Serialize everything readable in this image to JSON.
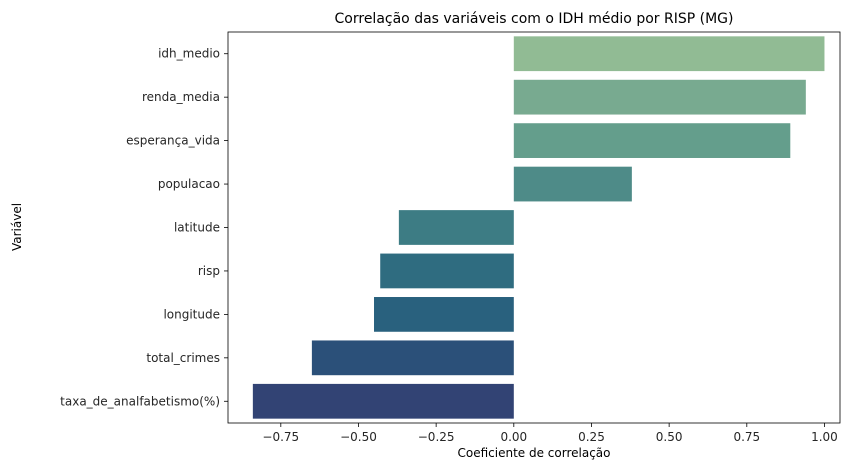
{
  "chart_data": {
    "type": "bar",
    "orientation": "horizontal",
    "title": "Correlação das variáveis com o IDH médio por RISP (MG)",
    "xlabel": "Coeficiente de correlação",
    "ylabel": "Variável",
    "categories": [
      "idh_medio",
      "renda_media",
      "esperança_vida",
      "populacao",
      "latitude",
      "risp",
      "longitude",
      "total_crimes",
      "taxa_de_analfabetismo(%)"
    ],
    "values": [
      1.0,
      0.94,
      0.89,
      0.38,
      -0.37,
      -0.43,
      -0.45,
      -0.65,
      -0.84
    ],
    "xlim": [
      -0.92,
      1.05
    ],
    "xticks": [
      -0.75,
      -0.5,
      -0.25,
      0.0,
      0.25,
      0.5,
      0.75,
      1.0
    ],
    "xtick_labels": [
      "−0.75",
      "−0.50",
      "−0.25",
      "0.00",
      "0.25",
      "0.50",
      "0.75",
      "1.00"
    ],
    "colors": [
      "#91bb94",
      "#78aa90",
      "#649e8c",
      "#4e8b88",
      "#3d7c84",
      "#2f6c80",
      "#29617e",
      "#2b5079",
      "#324374"
    ],
    "grid": false,
    "legend": "none"
  }
}
